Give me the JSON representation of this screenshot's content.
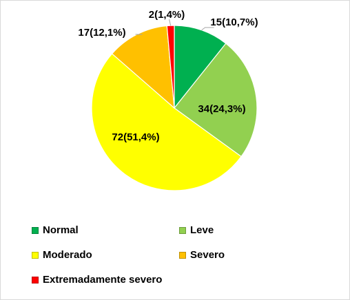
{
  "chart_data": {
    "type": "pie",
    "title": "",
    "slices": [
      {
        "name": "Normal",
        "value": 15,
        "label": "15(10,7%)",
        "color": "#00b050"
      },
      {
        "name": "Leve",
        "value": 34,
        "label": "34(24,3%)",
        "color": "#92d050"
      },
      {
        "name": "Moderado",
        "value": 72,
        "label": "72(51,4%)",
        "color": "#ffff00"
      },
      {
        "name": "Severo",
        "value": 17,
        "label": "17(12,1%)",
        "color": "#ffc000"
      },
      {
        "name": "Extremadamente severo",
        "value": 2,
        "label": "2(1,4%)",
        "color": "#ff0000"
      }
    ],
    "legend_position": "bottom"
  }
}
